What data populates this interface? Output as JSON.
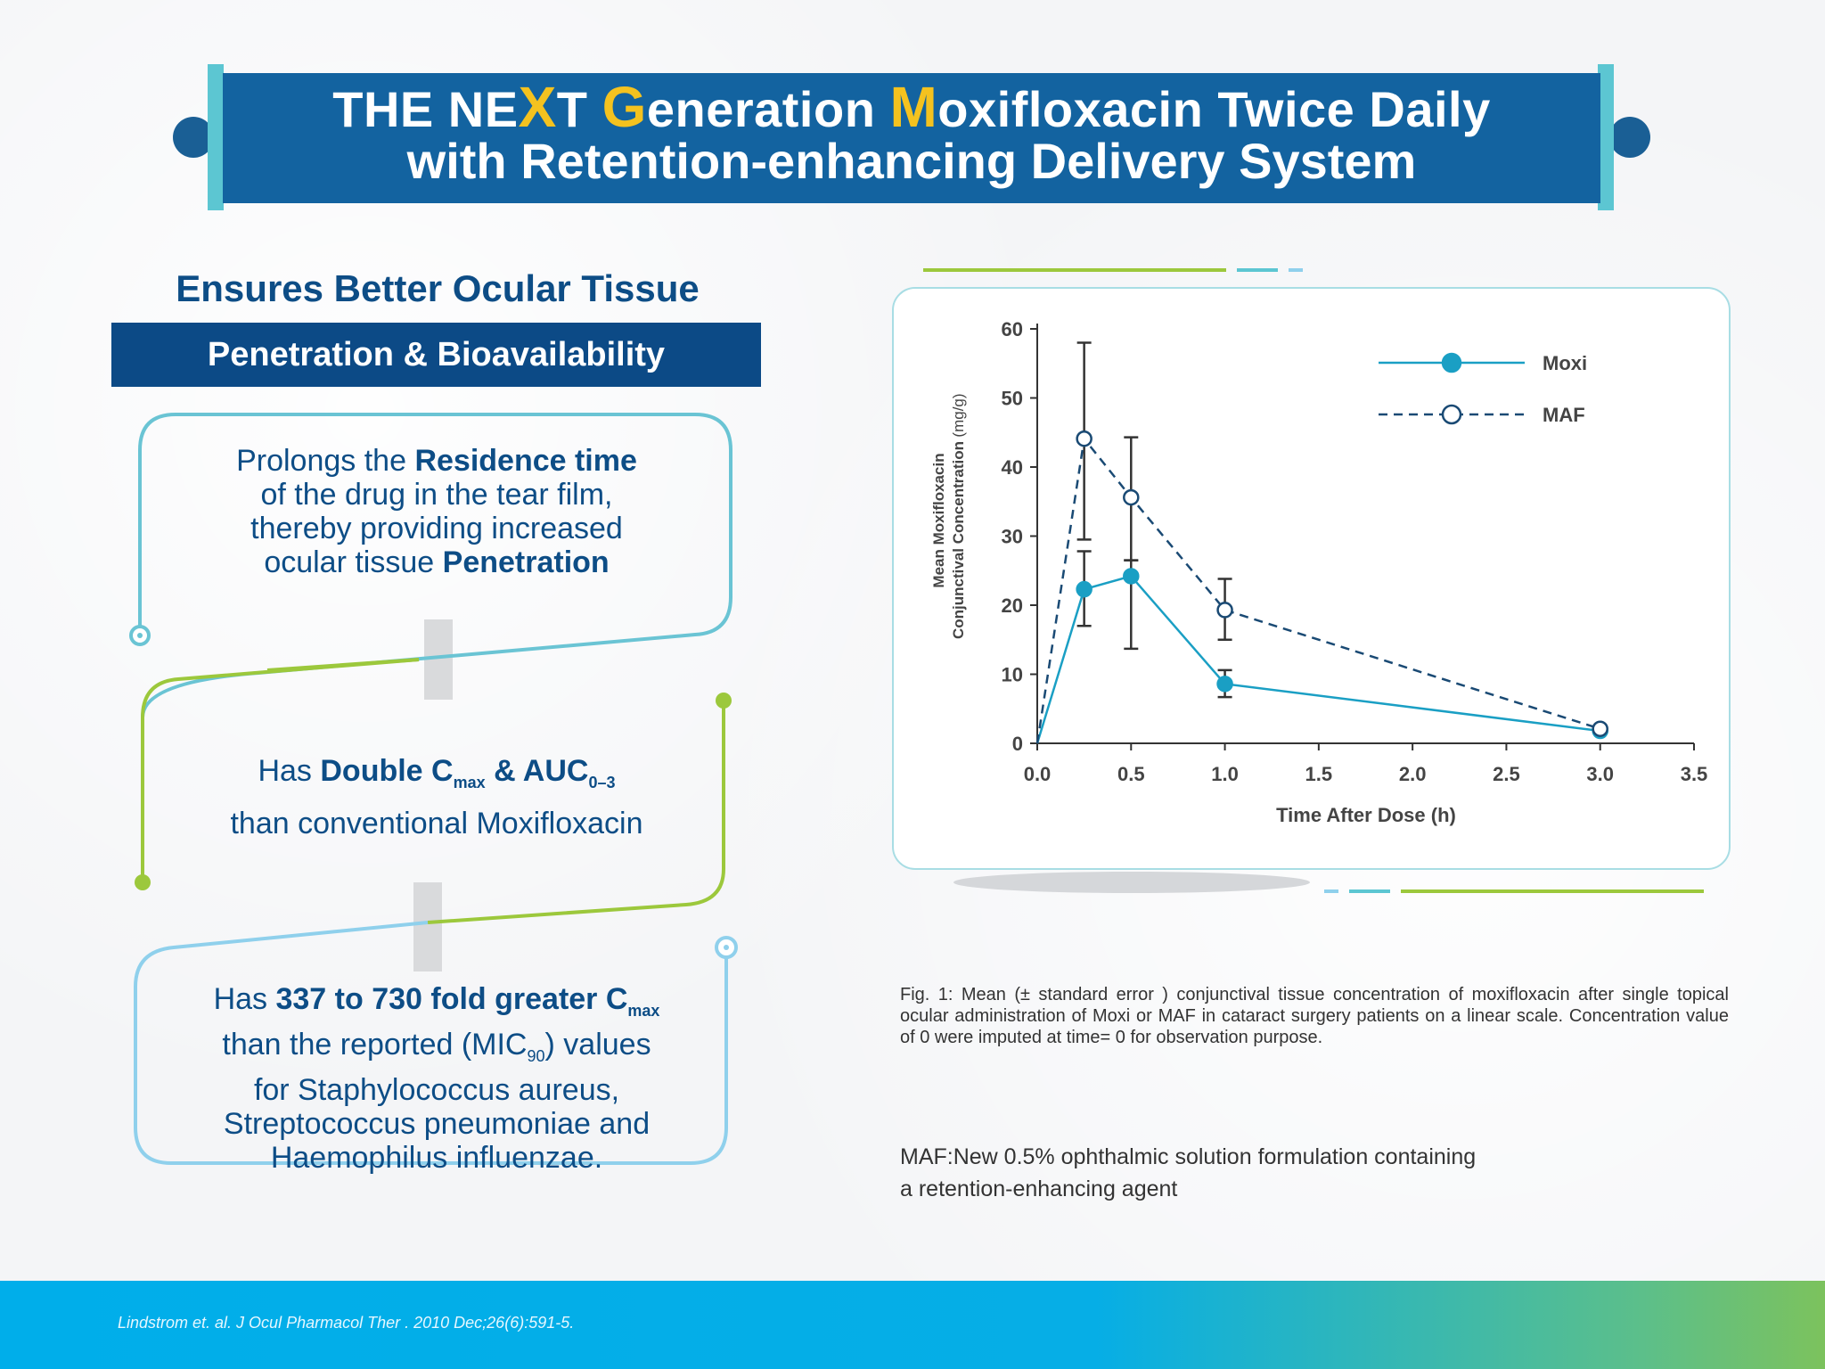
{
  "header": {
    "line1_a": "THE NE",
    "line1_x": "X",
    "line1_b": "T ",
    "line1_g": "G",
    "line1_c": "eneration ",
    "line1_m": "M",
    "line1_d": "oxifloxacin Twice Daily",
    "line2": "with Retention-enhancing Delivery System"
  },
  "left": {
    "title": "Ensures Better Ocular Tissue",
    "subtitle": "Penetration & Bioavailability",
    "bullet1": {
      "p1": "Prolongs the ",
      "b1": "Residence time",
      "p2": "of the drug in the tear film,",
      "p3": "thereby providing increased",
      "p4": "ocular tissue ",
      "b2": "Penetration"
    },
    "bullet2": {
      "p1": "Has ",
      "b1": "Double C",
      "s1": "max",
      "b2": " & AUC",
      "s2": "0–3",
      "p2": "than conventional Moxifloxacin"
    },
    "bullet3": {
      "p1": "Has ",
      "b1": "337 to 730 fold greater C",
      "s1": "max",
      "p2": "than the reported (MIC",
      "s2": "90",
      "p3": ") values",
      "p4": "for Staphylococcus aureus,",
      "p5": "Streptococcus pneumoniae and",
      "p6": "Haemophilus influenzae."
    }
  },
  "chart_data": {
    "type": "line",
    "xlabel": "Time After Dose (h)",
    "ylabel_line1": "Mean Moxifloxacin",
    "ylabel_line2": "Conjunctival Concentration",
    "ylabel_unit": "(mg/g)",
    "xlim": [
      0,
      3.5
    ],
    "ylim": [
      0,
      60
    ],
    "xticks": [
      "0.0",
      "0.5",
      "1.0",
      "1.5",
      "2.0",
      "2.5",
      "3.0",
      "3.5"
    ],
    "yticks": [
      "0",
      "10",
      "20",
      "30",
      "40",
      "50",
      "60"
    ],
    "legend_position": "top-right",
    "series": [
      {
        "name": "Moxi",
        "color": "#1a9fc4",
        "style": "solid",
        "marker": "filled-circle",
        "x": [
          0,
          0.25,
          0.5,
          1.0,
          3.0
        ],
        "y": [
          0,
          22.3,
          24.2,
          8.6,
          1.8
        ],
        "err_low": [
          null,
          17.0,
          13.7,
          6.7,
          null
        ],
        "err_high": [
          null,
          27.8,
          26.5,
          10.6,
          null
        ]
      },
      {
        "name": "MAF",
        "color": "#1a4a74",
        "style": "dashed",
        "marker": "open-circle",
        "x": [
          0,
          0.25,
          0.5,
          1.0,
          3.0
        ],
        "y": [
          0,
          44.1,
          35.6,
          19.3,
          2.1
        ],
        "err_low": [
          null,
          29.5,
          26.5,
          15.0,
          null
        ],
        "err_high": [
          null,
          58.0,
          44.3,
          23.8,
          null
        ]
      }
    ]
  },
  "caption": "Fig. 1: Mean (± standard error ) conjunctival tissue concentration of moxifloxacin after single topical ocular administration of Moxi or MAF in cataract surgery patients on a linear scale. Concentration value of 0 were imputed at time= 0 for observation purpose.",
  "note_line1": "MAF:New 0.5% ophthalmic solution formulation containing",
  "note_line2": "a retention-enhancing agent",
  "citation": "Lindstrom et. al. J Ocul Pharmacol Ther . 2010 Dec;26(6):591-5.",
  "colors": {
    "banner": "#1363a0",
    "accent_yellow": "#f4c21f",
    "dark_blue": "#0c4a86",
    "teal": "#5cc6d2",
    "green": "#9cc83c",
    "light_blue": "#8fd0ec"
  }
}
